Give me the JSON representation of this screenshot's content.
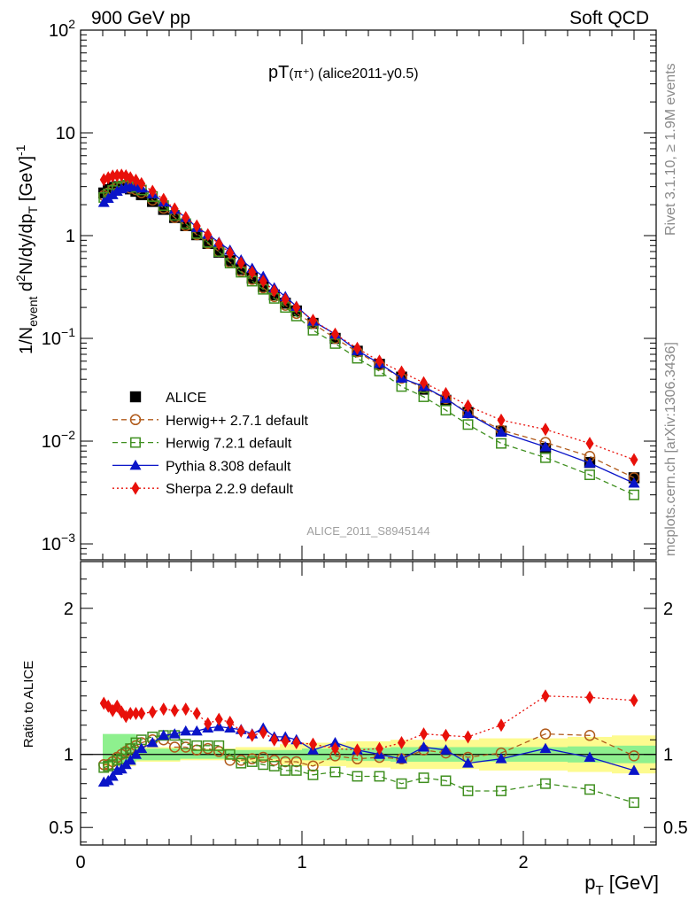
{
  "header": {
    "left": "900 GeV pp",
    "right": "Soft QCD"
  },
  "side_text": {
    "rivet": "Rivet 3.1.10, ≥ 1.9M events",
    "mcplots": "mcplots.cern.ch [arXiv:1306.3436]"
  },
  "watermark": "ALICE_2011_S8945144",
  "chart_data": [
    {
      "type": "scatter",
      "title": "pT(π⁺) (alice2011-y0.5)",
      "title_main": "pT",
      "title_sub": "(π⁺)",
      "title_tail": " (alice2011-y0.5)",
      "ylabel": "1/N_event d²N/dy/dp_T [GeV]⁻¹",
      "yscale": "log",
      "xlim": [
        0,
        2.6
      ],
      "ylim": [
        0.0007,
        100
      ],
      "grid": false,
      "legend_position": "middle-left",
      "yticks": [
        {
          "value": 0.001,
          "label": "10",
          "exp": "−3"
        },
        {
          "value": 0.01,
          "label": "10",
          "exp": "−2"
        },
        {
          "value": 0.1,
          "label": "10",
          "exp": "−1"
        },
        {
          "value": 1,
          "label": "1",
          "exp": ""
        },
        {
          "value": 10,
          "label": "10",
          "exp": ""
        },
        {
          "value": 100,
          "label": "10",
          "exp": "2"
        }
      ],
      "x": [
        0.105,
        0.125,
        0.145,
        0.165,
        0.185,
        0.205,
        0.225,
        0.25,
        0.275,
        0.325,
        0.375,
        0.425,
        0.475,
        0.525,
        0.575,
        0.625,
        0.675,
        0.725,
        0.775,
        0.825,
        0.875,
        0.925,
        0.975,
        1.05,
        1.15,
        1.25,
        1.35,
        1.45,
        1.55,
        1.65,
        1.75,
        1.9,
        2.1,
        2.3,
        2.5
      ],
      "series": [
        {
          "name": "ALICE",
          "color": "#000000",
          "marker": "square-filled",
          "line": "none",
          "values": [
            2.6,
            2.8,
            2.95,
            3.0,
            3.0,
            2.95,
            2.85,
            2.7,
            2.5,
            2.15,
            1.8,
            1.5,
            1.25,
            1.02,
            0.84,
            0.69,
            0.57,
            0.47,
            0.385,
            0.32,
            0.265,
            0.22,
            0.185,
            0.14,
            0.1,
            0.075,
            0.056,
            0.042,
            0.032,
            0.025,
            0.019,
            0.0125,
            0.0085,
            0.0062,
            0.0044
          ]
        },
        {
          "name": "Herwig++ 2.7.1 default",
          "color": "#b05a1a",
          "marker": "circle-open",
          "line": "dashed",
          "values": [
            2.45,
            2.6,
            2.8,
            2.95,
            3.0,
            3.0,
            2.9,
            2.8,
            2.62,
            2.22,
            1.85,
            1.5,
            1.25,
            1.02,
            0.84,
            0.7,
            0.55,
            0.45,
            0.375,
            0.31,
            0.255,
            0.21,
            0.175,
            0.14,
            0.1,
            0.074,
            0.055,
            0.041,
            0.033,
            0.026,
            0.0188,
            0.0128,
            0.0097,
            0.0071,
            0.0044
          ]
        },
        {
          "name": "Herwig 7.2.1 default",
          "color": "#3f8f1f",
          "marker": "square-open",
          "line": "dashed",
          "values": [
            2.35,
            2.55,
            2.75,
            2.95,
            3.05,
            3.1,
            3.05,
            2.95,
            2.78,
            2.4,
            1.96,
            1.58,
            1.31,
            1.05,
            0.86,
            0.7,
            0.54,
            0.44,
            0.36,
            0.3,
            0.245,
            0.2,
            0.165,
            0.12,
            0.089,
            0.064,
            0.048,
            0.034,
            0.027,
            0.02,
            0.0145,
            0.0095,
            0.0069,
            0.0047,
            0.003
          ]
        },
        {
          "name": "Pythia 8.308 default",
          "color": "#0a14c8",
          "marker": "triangle-filled",
          "line": "solid",
          "values": [
            2.1,
            2.3,
            2.5,
            2.7,
            2.85,
            2.95,
            3.0,
            3.0,
            2.9,
            2.55,
            2.12,
            1.8,
            1.5,
            1.2,
            1.03,
            0.86,
            0.72,
            0.58,
            0.48,
            0.4,
            0.31,
            0.255,
            0.205,
            0.147,
            0.11,
            0.076,
            0.057,
            0.041,
            0.034,
            0.026,
            0.0185,
            0.0122,
            0.0088,
            0.0061,
            0.0039
          ]
        },
        {
          "name": "Sherpa 2.2.9 default",
          "color": "#e8100a",
          "marker": "diamond-filled",
          "line": "dotted",
          "values": [
            3.5,
            3.65,
            3.8,
            3.85,
            3.88,
            3.82,
            3.65,
            3.46,
            3.2,
            2.7,
            2.25,
            1.82,
            1.5,
            1.24,
            1.02,
            0.83,
            0.68,
            0.54,
            0.44,
            0.36,
            0.29,
            0.24,
            0.2,
            0.15,
            0.11,
            0.08,
            0.06,
            0.047,
            0.037,
            0.029,
            0.022,
            0.016,
            0.013,
            0.0095,
            0.0066
          ]
        }
      ]
    },
    {
      "type": "scatter",
      "ylabel": "Ratio to ALICE",
      "xlabel": "p_T [GeV]",
      "xlim": [
        0,
        2.6
      ],
      "ylim": [
        0.38,
        2.32
      ],
      "xticks": [
        0,
        1,
        2
      ],
      "yticks_left": [
        0.5,
        1,
        2
      ],
      "yticks_right": [
        0.5,
        1,
        2
      ],
      "reference_line": 1,
      "grid": false,
      "bands": {
        "edges": [
          0.1,
          0.25,
          0.45,
          0.6,
          0.7,
          0.9,
          1.0,
          1.2,
          1.4,
          1.6,
          1.8,
          2.0,
          2.2,
          2.4,
          2.6
        ],
        "stat_low": [
          0.94,
          0.96,
          0.97,
          0.97,
          0.97,
          0.97,
          0.96,
          0.955,
          0.95,
          0.95,
          0.95,
          0.95,
          0.945,
          0.94
        ],
        "stat_high": [
          1.14,
          1.04,
          1.03,
          1.03,
          1.03,
          1.03,
          1.04,
          1.045,
          1.05,
          1.05,
          1.05,
          1.05,
          1.055,
          1.06
        ],
        "syst_low": [
          0.92,
          0.95,
          0.96,
          0.96,
          0.95,
          0.93,
          0.92,
          0.91,
          0.9,
          0.9,
          0.89,
          0.89,
          0.88,
          0.87
        ],
        "syst_high": [
          1.08,
          1.05,
          1.04,
          1.04,
          1.05,
          1.07,
          1.08,
          1.09,
          1.1,
          1.1,
          1.11,
          1.11,
          1.12,
          1.13
        ],
        "stat_color": "#8ef08e",
        "syst_color": "#fdfb8f"
      },
      "series": [
        {
          "name": "Herwig++ 2.7.1 default",
          "color": "#b05a1a",
          "marker": "circle-open",
          "line": "dashed",
          "x": [
            0.105,
            0.125,
            0.145,
            0.165,
            0.185,
            0.205,
            0.225,
            0.25,
            0.275,
            0.325,
            0.375,
            0.425,
            0.475,
            0.525,
            0.575,
            0.625,
            0.675,
            0.725,
            0.775,
            0.825,
            0.875,
            0.925,
            0.975,
            1.05,
            1.15,
            1.25,
            1.35,
            1.45,
            1.55,
            1.65,
            1.75,
            1.9,
            2.1,
            2.3,
            2.5
          ],
          "values": [
            0.93,
            0.93,
            0.95,
            0.98,
            1.0,
            1.02,
            1.04,
            1.06,
            1.08,
            1.1,
            1.1,
            1.05,
            1.05,
            1.03,
            1.04,
            1.02,
            0.96,
            0.96,
            0.97,
            0.98,
            0.96,
            0.95,
            0.95,
            0.92,
            0.99,
            0.97,
            0.98,
            0.97,
            1.03,
            1.01,
            0.98,
            1.01,
            1.14,
            1.13,
            0.99
          ]
        },
        {
          "name": "Herwig 7.2.1 default",
          "color": "#3f8f1f",
          "marker": "square-open",
          "line": "dashed",
          "x": [
            0.105,
            0.125,
            0.145,
            0.165,
            0.185,
            0.205,
            0.225,
            0.25,
            0.275,
            0.325,
            0.375,
            0.425,
            0.475,
            0.525,
            0.575,
            0.625,
            0.675,
            0.725,
            0.775,
            0.825,
            0.875,
            0.925,
            0.975,
            1.05,
            1.15,
            1.25,
            1.35,
            1.45,
            1.55,
            1.65,
            1.75,
            1.9,
            2.1,
            2.3,
            2.5
          ],
          "values": [
            0.91,
            0.92,
            0.93,
            0.96,
            0.97,
            1.01,
            1.04,
            1.08,
            1.1,
            1.12,
            1.13,
            1.13,
            1.07,
            1.06,
            1.06,
            1.06,
            1.0,
            0.94,
            0.95,
            0.93,
            0.92,
            0.89,
            0.89,
            0.86,
            0.88,
            0.85,
            0.85,
            0.8,
            0.84,
            0.82,
            0.75,
            0.75,
            0.8,
            0.76,
            0.67
          ]
        },
        {
          "name": "Pythia 8.308 default",
          "color": "#0a14c8",
          "marker": "triangle-filled",
          "line": "solid",
          "x": [
            0.105,
            0.125,
            0.145,
            0.165,
            0.185,
            0.205,
            0.225,
            0.25,
            0.275,
            0.325,
            0.375,
            0.425,
            0.475,
            0.525,
            0.575,
            0.625,
            0.675,
            0.725,
            0.775,
            0.825,
            0.875,
            0.925,
            0.975,
            1.05,
            1.15,
            1.25,
            1.35,
            1.45,
            1.55,
            1.65,
            1.75,
            1.9,
            2.1,
            2.3,
            2.5
          ],
          "values": [
            0.81,
            0.82,
            0.85,
            0.89,
            0.9,
            0.93,
            0.96,
            1.0,
            1.04,
            1.08,
            1.13,
            1.14,
            1.16,
            1.16,
            1.18,
            1.19,
            1.18,
            1.17,
            1.14,
            1.18,
            1.12,
            1.12,
            1.1,
            1.03,
            1.08,
            1.03,
            1.0,
            0.97,
            1.05,
            1.03,
            0.94,
            0.97,
            1.04,
            0.98,
            0.89
          ]
        },
        {
          "name": "Sherpa 2.2.9 default",
          "color": "#e8100a",
          "marker": "diamond-filled",
          "line": "dotted",
          "x": [
            0.105,
            0.125,
            0.145,
            0.165,
            0.185,
            0.205,
            0.225,
            0.25,
            0.275,
            0.325,
            0.375,
            0.425,
            0.475,
            0.525,
            0.575,
            0.625,
            0.675,
            0.725,
            0.775,
            0.825,
            0.875,
            0.925,
            0.975,
            1.05,
            1.15,
            1.25,
            1.35,
            1.45,
            1.55,
            1.65,
            1.75,
            1.9,
            2.1,
            2.3,
            2.5
          ],
          "values": [
            1.35,
            1.33,
            1.3,
            1.33,
            1.29,
            1.26,
            1.28,
            1.28,
            1.28,
            1.29,
            1.31,
            1.3,
            1.31,
            1.28,
            1.21,
            1.24,
            1.22,
            1.16,
            1.13,
            1.15,
            1.1,
            1.09,
            1.08,
            1.07,
            1.04,
            1.03,
            1.04,
            1.08,
            1.14,
            1.13,
            1.12,
            1.2,
            1.4,
            1.39,
            1.37
          ]
        }
      ]
    }
  ]
}
